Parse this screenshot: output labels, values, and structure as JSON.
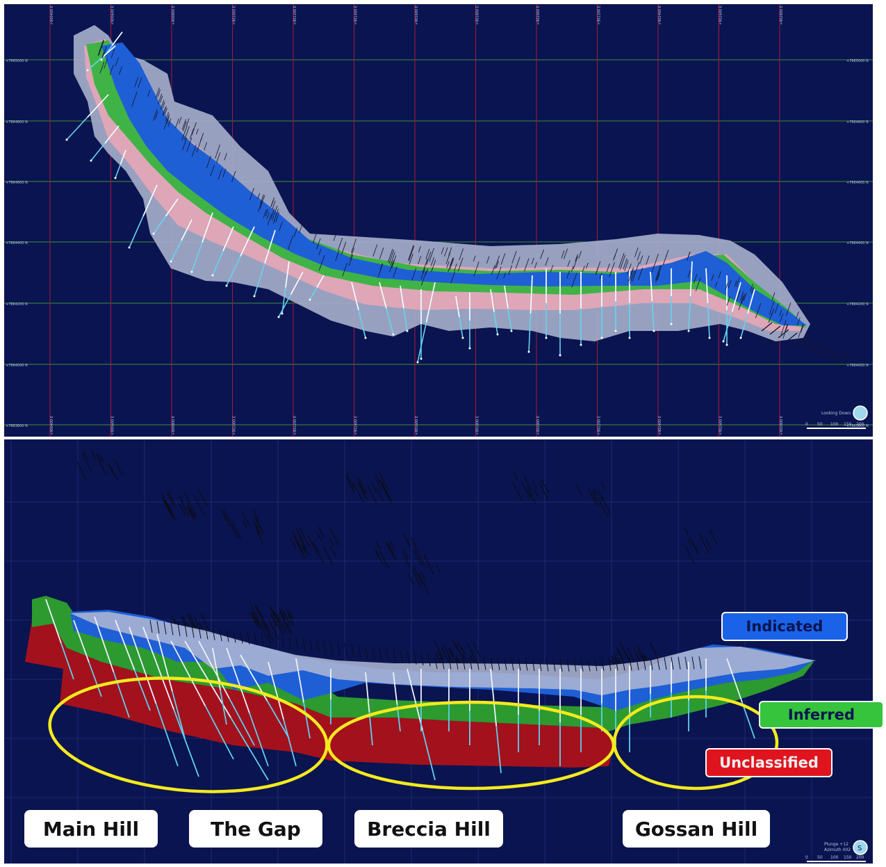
{
  "plan_view": {
    "northings": [
      "+7665000 N",
      "+7664800 N",
      "+7664600 N",
      "+7664400 N",
      "+7664200 N",
      "+7664000 N",
      "+7663800 N"
    ],
    "eastings": [
      "+900400 E",
      "+900600 E",
      "+900800 E",
      "+901000 E",
      "+901200 E",
      "+901400 E",
      "+901600 E",
      "+901800 E",
      "+902000 E",
      "+902200 E",
      "+902400 E",
      "+902600 E",
      "+902800 E"
    ],
    "view_label": "Looking Down",
    "scale_ticks": [
      "0",
      "50",
      "100",
      "150",
      "200"
    ]
  },
  "section_view": {
    "view_info": [
      "Plunge +12",
      "Azimuth 002"
    ],
    "compass_letter": "S",
    "scale_ticks": [
      "0",
      "50",
      "100",
      "150",
      "200"
    ]
  },
  "legend": {
    "indicated": "Indicated",
    "inferred": "Inferred",
    "unclassified": "Unclassified"
  },
  "areas": [
    "Main Hill",
    "The Gap",
    "Breccia Hill",
    "Gossan Hill"
  ],
  "colors": {
    "background": "#0a1450",
    "indicated": "#1f5fd6",
    "inferred": "#2fb53a",
    "unclassified": "#c41622",
    "envelope": "#9ea6c6",
    "highlight_ellipse": "#f5ea1e"
  }
}
